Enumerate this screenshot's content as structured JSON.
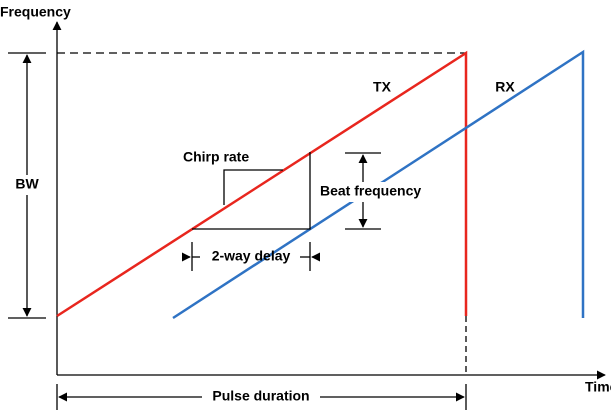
{
  "axes": {
    "y_label": "Frequency",
    "x_label": "Time"
  },
  "signals": {
    "tx": "TX",
    "rx": "RX"
  },
  "annotations": {
    "bandwidth": "BW",
    "chirp_rate": "Chirp rate",
    "beat_frequency": "Beat frequency",
    "delay": "2-way delay",
    "pulse_duration": "Pulse duration"
  }
}
